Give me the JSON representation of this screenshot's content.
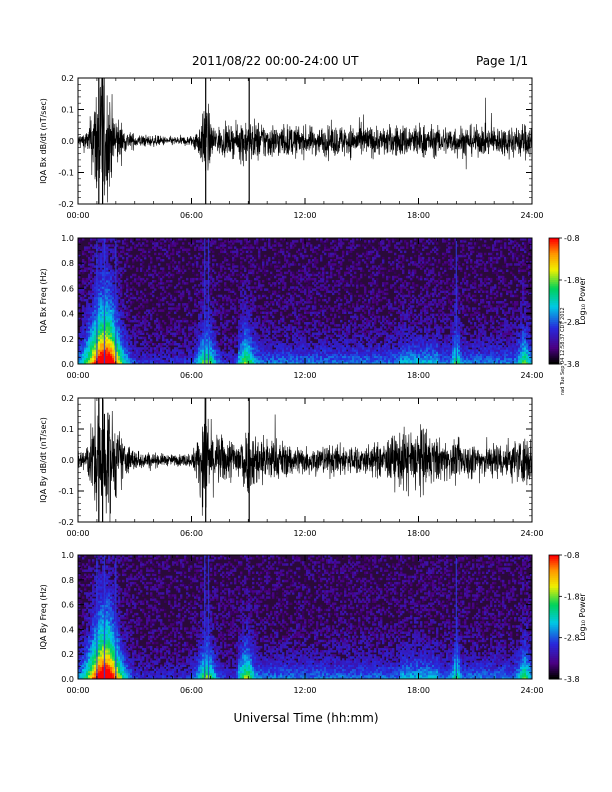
{
  "header": {
    "date_range": "2011/08/22  00:00-24:00 UT",
    "page": "Page 1/1"
  },
  "x_axis_title": "Universal Time (hh:mm)",
  "side_note": "rad Tue Sep 04 12:58:37 CDT 2012",
  "colorbar": {
    "title": "Log₁₀ Power",
    "ticks": [
      "-0.8",
      "-1.8",
      "-2.8",
      "-3.8"
    ]
  },
  "chart_data": [
    {
      "type": "line",
      "ylabel": "IQA Bx dB/dt (nT/sec)",
      "xlim": [
        0,
        24
      ],
      "ylim": [
        -0.2,
        0.2
      ],
      "x_ticks": [
        "00:00",
        "06:00",
        "12:00",
        "18:00",
        "24:00"
      ],
      "y_ticks": [
        "0.2",
        "0.1",
        "0.0",
        "-0.1",
        "-0.2"
      ],
      "envelope": {
        "hours": [
          0,
          0.5,
          0.8,
          1.0,
          1.3,
          1.6,
          1.9,
          2.2,
          2.5,
          3,
          4,
          5,
          6,
          6.3,
          6.6,
          6.8,
          7,
          7.5,
          8,
          8.5,
          8.8,
          9,
          9.3,
          10,
          11,
          12,
          13,
          14,
          15,
          16,
          17,
          18,
          19,
          20,
          21,
          22,
          23,
          24
        ],
        "amplitude": [
          0.02,
          0.03,
          0.1,
          0.2,
          0.2,
          0.15,
          0.09,
          0.06,
          0.03,
          0.02,
          0.015,
          0.012,
          0.015,
          0.04,
          0.07,
          0.15,
          0.05,
          0.04,
          0.04,
          0.045,
          0.08,
          0.05,
          0.06,
          0.05,
          0.045,
          0.04,
          0.04,
          0.045,
          0.045,
          0.04,
          0.045,
          0.05,
          0.04,
          0.045,
          0.04,
          0.04,
          0.045,
          0.05
        ]
      }
    },
    {
      "type": "heatmap",
      "ylabel": "IQA Bx Freq (Hz)",
      "xlim": [
        0,
        24
      ],
      "ylim": [
        0,
        1.0
      ],
      "x_ticks": [
        "00:00",
        "06:00",
        "12:00",
        "18:00",
        "24:00"
      ],
      "y_ticks": [
        "1.0",
        "0.8",
        "0.6",
        "0.4",
        "0.2",
        "0.0"
      ],
      "colorbar_range": [
        -3.8,
        -0.8
      ]
    },
    {
      "type": "line",
      "ylabel": "IQA By dB/dt (nT/sec)",
      "xlim": [
        0,
        24
      ],
      "ylim": [
        -0.2,
        0.2
      ],
      "x_ticks": [
        "00:00",
        "06:00",
        "12:00",
        "18:00",
        "24:00"
      ],
      "y_ticks": [
        "0.2",
        "0.1",
        "0.0",
        "-0.1",
        "-0.2"
      ],
      "envelope": {
        "hours": [
          0,
          0.5,
          0.8,
          1.0,
          1.3,
          1.6,
          1.9,
          2.2,
          2.5,
          3,
          4,
          5,
          6,
          6.3,
          6.6,
          6.8,
          7,
          7.5,
          8,
          8.5,
          8.8,
          9,
          9.3,
          10,
          11,
          12,
          13,
          14,
          15,
          16,
          17,
          18,
          19,
          20,
          21,
          22,
          23,
          24
        ],
        "amplitude": [
          0.03,
          0.05,
          0.12,
          0.2,
          0.2,
          0.18,
          0.12,
          0.08,
          0.05,
          0.03,
          0.02,
          0.015,
          0.02,
          0.06,
          0.12,
          0.2,
          0.09,
          0.07,
          0.06,
          0.07,
          0.1,
          0.09,
          0.08,
          0.07,
          0.05,
          0.04,
          0.04,
          0.045,
          0.04,
          0.05,
          0.08,
          0.1,
          0.06,
          0.05,
          0.05,
          0.05,
          0.06,
          0.07
        ]
      }
    },
    {
      "type": "heatmap",
      "ylabel": "IQA By Freq (Hz)",
      "xlim": [
        0,
        24
      ],
      "ylim": [
        0,
        1.0
      ],
      "x_ticks": [
        "00:00",
        "06:00",
        "12:00",
        "18:00",
        "24:00"
      ],
      "y_ticks": [
        "1.0",
        "0.8",
        "0.6",
        "0.4",
        "0.2",
        "0.0"
      ],
      "colorbar_range": [
        -3.8,
        -0.8
      ]
    }
  ]
}
